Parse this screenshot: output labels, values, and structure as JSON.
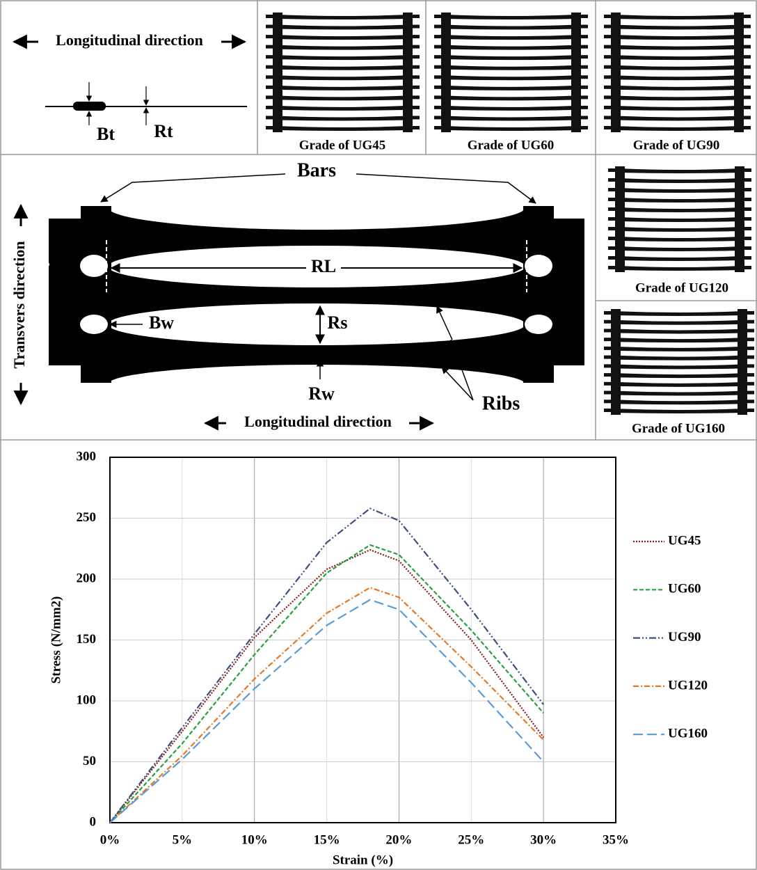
{
  "top_left": {
    "direction_label": "Longitudinal direction",
    "bt_label": "Bt",
    "rt_label": "Rt"
  },
  "photos": [
    {
      "caption": "Grade of  UG45"
    },
    {
      "caption": "Grade of  UG60"
    },
    {
      "caption": "Grade of UG90"
    },
    {
      "caption": "Grade of UG120"
    },
    {
      "caption": "Grade of UG160"
    }
  ],
  "diagram": {
    "bars_label": "Bars",
    "rl_label": "RL",
    "bw_label": "Bw",
    "rs_label": "Rs",
    "rw_label": "Rw",
    "ribs_label": "Ribs",
    "transverse_label": "Transvers direction",
    "longitudinal_label": "Longitudinal direction"
  },
  "chart_data": {
    "type": "line",
    "x_label": "Strain (%)",
    "y_label": "Stress (N/mm2)",
    "x": [
      0,
      5,
      10,
      15,
      18,
      20,
      25,
      30
    ],
    "series": [
      {
        "name": "UG45",
        "color": "#8b1a1a",
        "dash": "2,2",
        "values": [
          0,
          75,
          152,
          208,
          224,
          215,
          150,
          70
        ]
      },
      {
        "name": "UG60",
        "color": "#22a33a",
        "dash": "6,3",
        "values": [
          0,
          65,
          138,
          205,
          228,
          220,
          158,
          90
        ]
      },
      {
        "name": "UG90",
        "color": "#3a4e80",
        "dash": "10,3,2,3,2,3",
        "values": [
          0,
          78,
          155,
          230,
          258,
          248,
          175,
          97
        ]
      },
      {
        "name": "UG120",
        "color": "#e87722",
        "dash": "8,3,2,3",
        "values": [
          0,
          55,
          118,
          172,
          193,
          185,
          128,
          68
        ]
      },
      {
        "name": "UG160",
        "color": "#5b9bd5",
        "dash": "14,6",
        "values": [
          0,
          52,
          110,
          162,
          183,
          175,
          115,
          50
        ]
      }
    ],
    "xlim": [
      0,
      35
    ],
    "ylim": [
      0,
      300
    ],
    "xticks": [
      {
        "value": 0,
        "label": "0%"
      },
      {
        "value": 5,
        "label": "5%"
      },
      {
        "value": 10,
        "label": "10%"
      },
      {
        "value": 15,
        "label": "15%"
      },
      {
        "value": 20,
        "label": "20%"
      },
      {
        "value": 25,
        "label": "25%"
      },
      {
        "value": 30,
        "label": "30%"
      },
      {
        "value": 35,
        "label": "35%"
      }
    ],
    "yticks": [
      0,
      50,
      100,
      150,
      200,
      250,
      300
    ],
    "grid": true
  }
}
